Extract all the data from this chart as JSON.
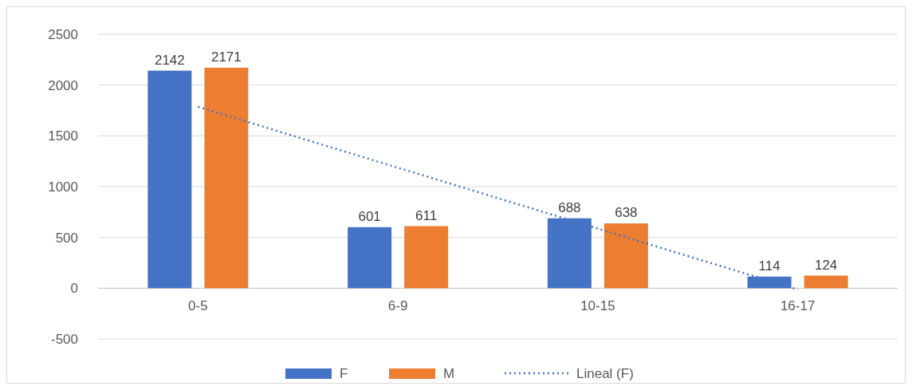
{
  "chart_data": {
    "type": "bar",
    "categories": [
      "0-5",
      "6-9",
      "10-15",
      "16-17"
    ],
    "series": [
      {
        "name": "F",
        "color": "#4472c4",
        "values": [
          2142,
          601,
          688,
          114
        ],
        "value_labels": [
          "2142",
          "601",
          "688",
          "114"
        ]
      },
      {
        "name": "M",
        "color": "#ed7d31",
        "values": [
          2171,
          611,
          638,
          124
        ],
        "value_labels": [
          "2171",
          "611",
          "638",
          "124"
        ]
      },
      {
        "name": "Lineal (F)",
        "type": "line",
        "color": "#4472c4",
        "line_style": "dotted",
        "marker": "none",
        "x": [
          "0-5",
          "16-17"
        ],
        "values": [
          1786,
          -13
        ]
      }
    ],
    "ylim": [
      -500,
      2500
    ],
    "yticks": [
      -500,
      0,
      500,
      1000,
      1500,
      2000,
      2500
    ],
    "grid": "y",
    "legend": "bottom"
  }
}
